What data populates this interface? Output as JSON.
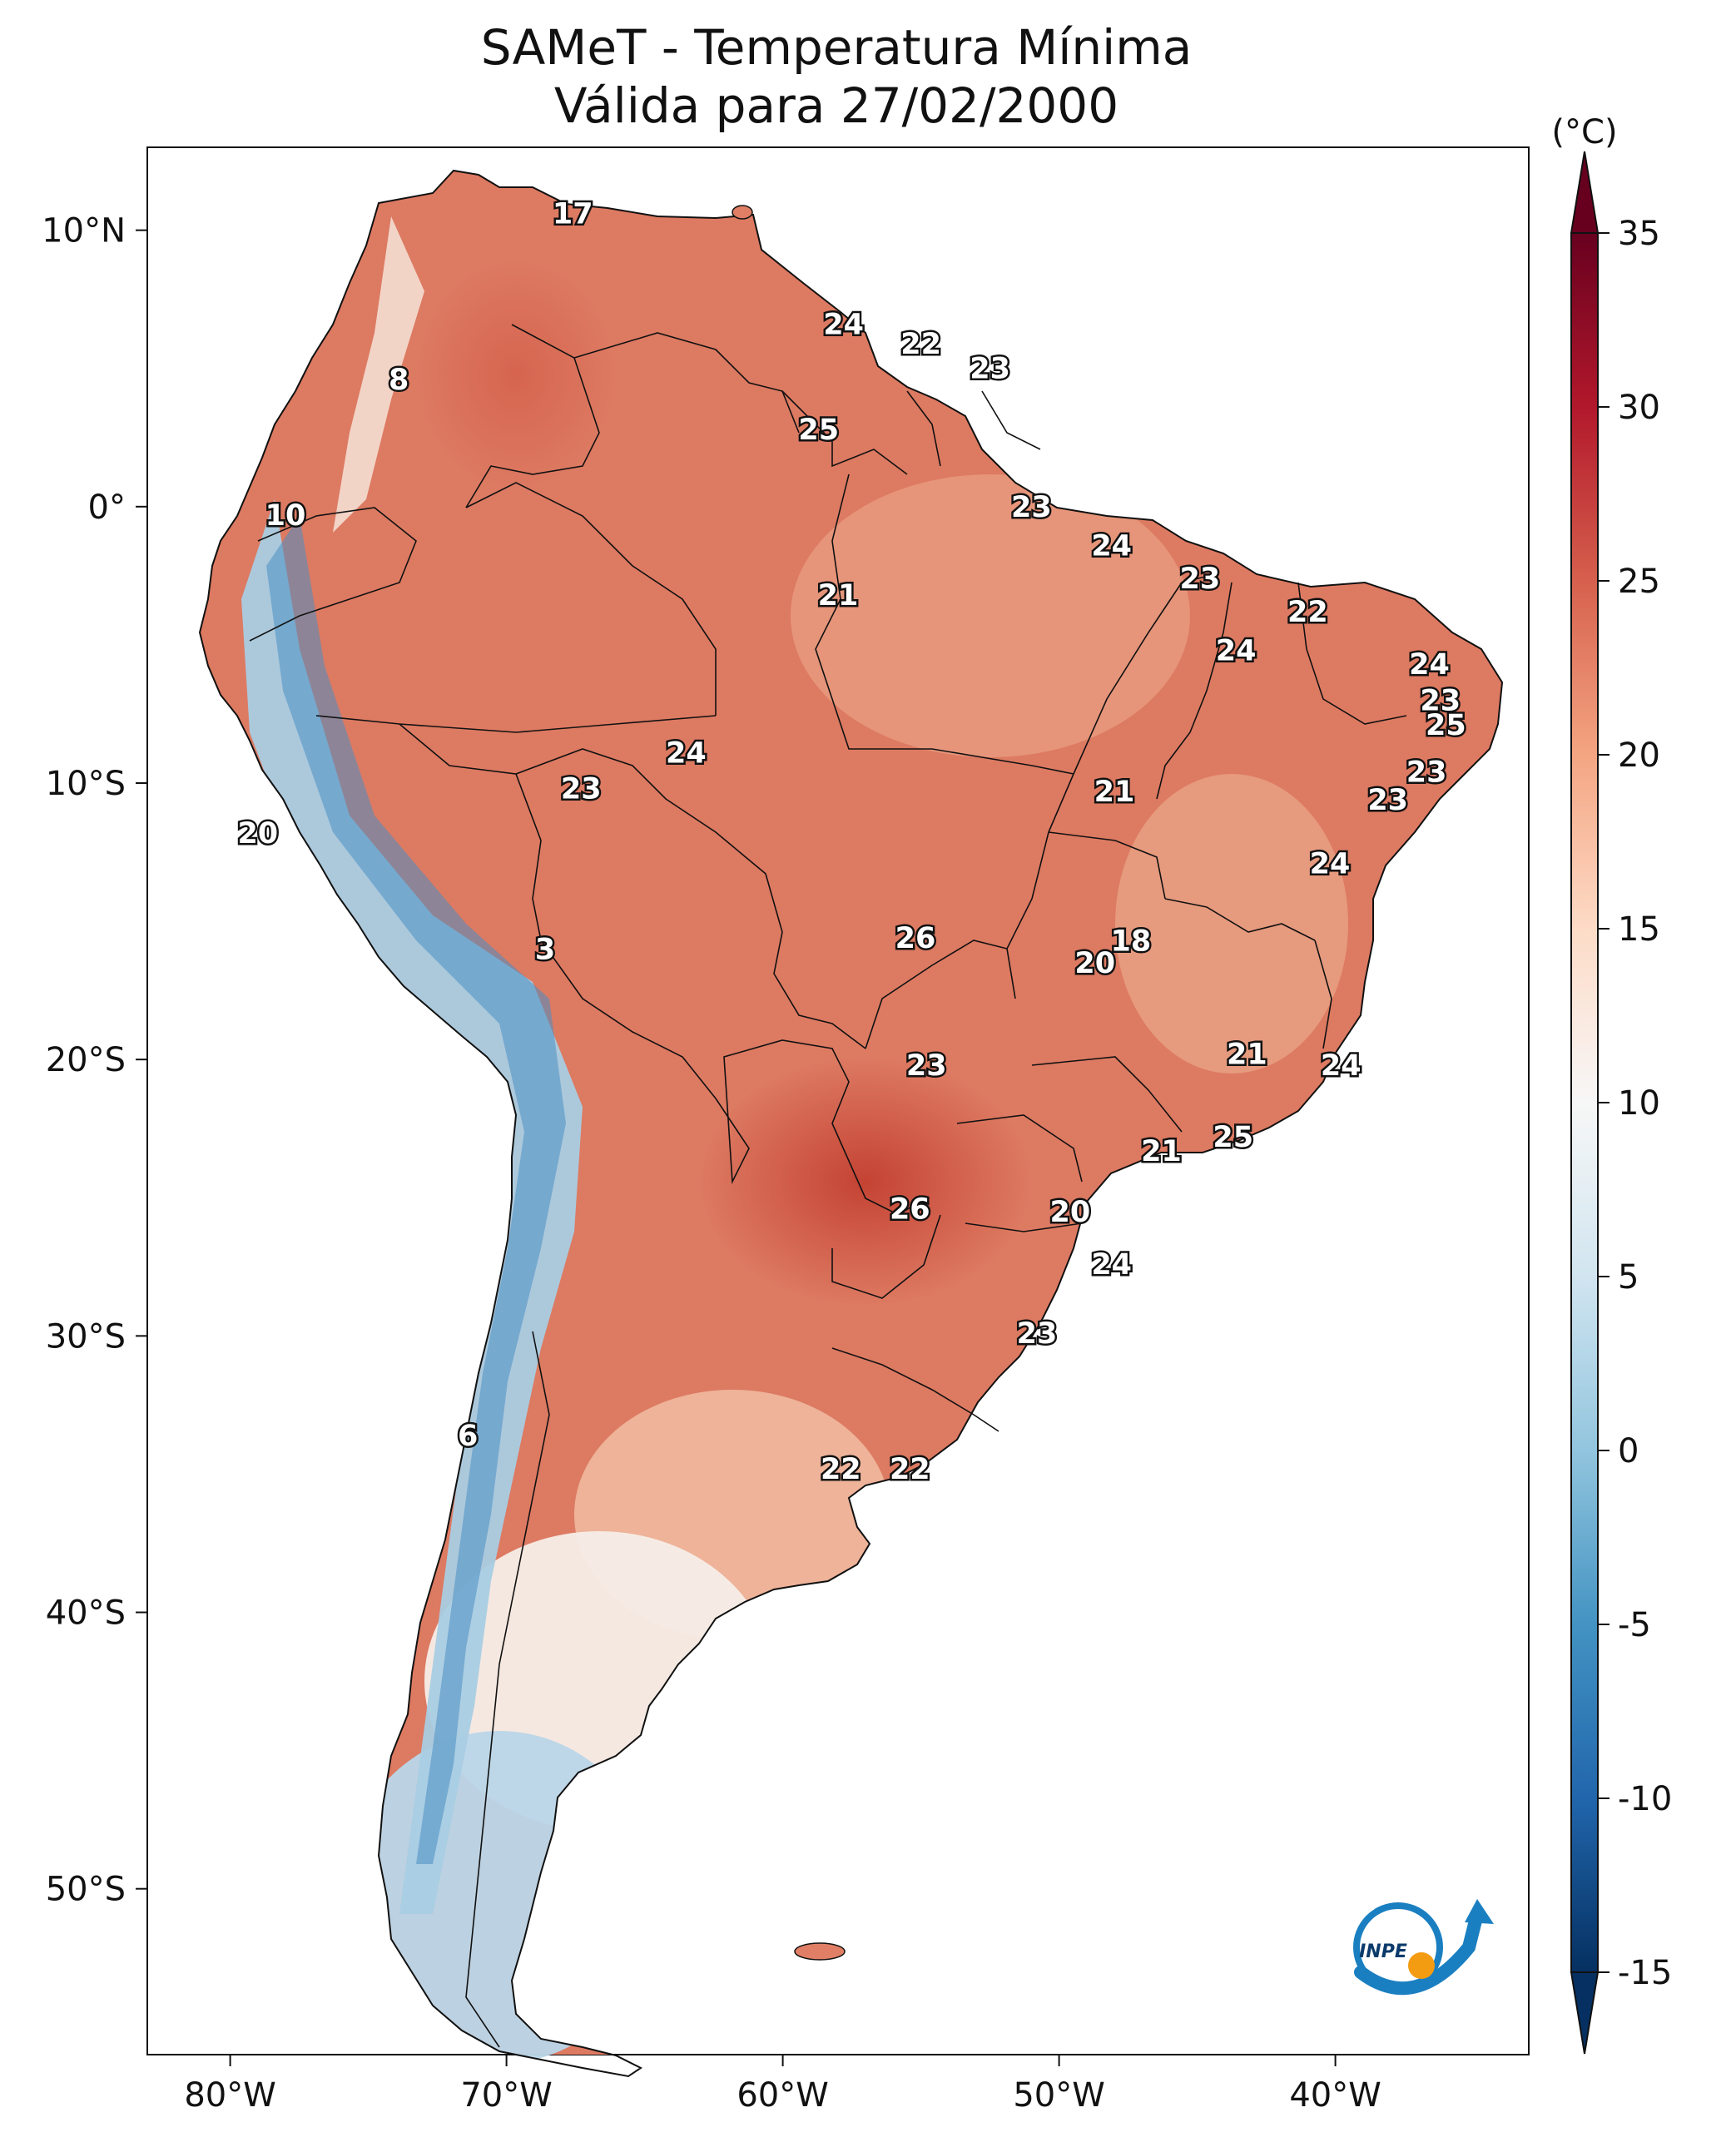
{
  "title": {
    "line1": "SAMeT - Temperatura Mínima",
    "line2": "Válida para 27/02/2000"
  },
  "map": {
    "extent": {
      "lon": [
        -83,
        -33
      ],
      "lat": [
        -56,
        13
      ]
    },
    "lat_ticks": [
      {
        "value": 10,
        "label": "10°N"
      },
      {
        "value": 0,
        "label": "0°"
      },
      {
        "value": -10,
        "label": "10°S"
      },
      {
        "value": -20,
        "label": "20°S"
      },
      {
        "value": -30,
        "label": "30°S"
      },
      {
        "value": -40,
        "label": "40°S"
      },
      {
        "value": -50,
        "label": "50°S"
      }
    ],
    "lon_ticks": [
      {
        "value": -80,
        "label": "80°W"
      },
      {
        "value": -70,
        "label": "70°W"
      },
      {
        "value": -60,
        "label": "60°W"
      },
      {
        "value": -50,
        "label": "50°W"
      },
      {
        "value": -40,
        "label": "40°W"
      }
    ],
    "value_labels": [
      {
        "lon": -67.6,
        "lat": 10.6,
        "text": "17"
      },
      {
        "lon": -73.9,
        "lat": 4.6,
        "text": "8"
      },
      {
        "lon": -78.0,
        "lat": -0.3,
        "text": "10"
      },
      {
        "lon": -57.8,
        "lat": 6.6,
        "text": "24"
      },
      {
        "lon": -55.0,
        "lat": 5.9,
        "text": "22"
      },
      {
        "lon": -52.5,
        "lat": 5.0,
        "text": "23"
      },
      {
        "lon": -58.7,
        "lat": 2.8,
        "text": "25"
      },
      {
        "lon": -51.0,
        "lat": 0.0,
        "text": "23"
      },
      {
        "lon": -48.1,
        "lat": -1.4,
        "text": "24"
      },
      {
        "lon": -44.9,
        "lat": -2.6,
        "text": "23"
      },
      {
        "lon": -41.0,
        "lat": -3.8,
        "text": "22"
      },
      {
        "lon": -58.0,
        "lat": -3.2,
        "text": "21"
      },
      {
        "lon": -43.6,
        "lat": -5.2,
        "text": "24"
      },
      {
        "lon": -36.6,
        "lat": -5.7,
        "text": "24"
      },
      {
        "lon": -36.2,
        "lat": -7.0,
        "text": "23"
      },
      {
        "lon": -36.0,
        "lat": -7.9,
        "text": "25"
      },
      {
        "lon": -36.7,
        "lat": -9.6,
        "text": "23"
      },
      {
        "lon": -38.1,
        "lat": -10.6,
        "text": "23"
      },
      {
        "lon": -63.5,
        "lat": -8.9,
        "text": "24"
      },
      {
        "lon": -67.3,
        "lat": -10.2,
        "text": "23"
      },
      {
        "lon": -48.0,
        "lat": -10.3,
        "text": "21"
      },
      {
        "lon": -79.0,
        "lat": -11.8,
        "text": "20"
      },
      {
        "lon": -40.2,
        "lat": -12.9,
        "text": "24"
      },
      {
        "lon": -68.6,
        "lat": -16.0,
        "text": "3"
      },
      {
        "lon": -55.2,
        "lat": -15.6,
        "text": "26"
      },
      {
        "lon": -47.4,
        "lat": -15.7,
        "text": "18"
      },
      {
        "lon": -48.7,
        "lat": -16.5,
        "text": "20"
      },
      {
        "lon": -54.8,
        "lat": -20.2,
        "text": "23"
      },
      {
        "lon": -43.2,
        "lat": -19.8,
        "text": "21"
      },
      {
        "lon": -39.8,
        "lat": -20.2,
        "text": "24"
      },
      {
        "lon": -46.3,
        "lat": -23.3,
        "text": "21"
      },
      {
        "lon": -43.7,
        "lat": -22.8,
        "text": "25"
      },
      {
        "lon": -55.4,
        "lat": -25.4,
        "text": "26"
      },
      {
        "lon": -49.6,
        "lat": -25.5,
        "text": "20"
      },
      {
        "lon": -48.1,
        "lat": -27.4,
        "text": "24"
      },
      {
        "lon": -50.8,
        "lat": -29.9,
        "text": "23"
      },
      {
        "lon": -71.4,
        "lat": -33.6,
        "text": "6"
      },
      {
        "lon": -57.9,
        "lat": -34.8,
        "text": "22"
      },
      {
        "lon": -55.4,
        "lat": -34.8,
        "text": "22"
      }
    ]
  },
  "colorbar": {
    "unit": "(°C)",
    "vmin": -15,
    "vmax": 35,
    "ticks": [
      "-15",
      "-10",
      "-5",
      "0",
      "5",
      "10",
      "15",
      "20",
      "25",
      "30",
      "35"
    ],
    "colors": [
      "#053061",
      "#2166ac",
      "#4393c3",
      "#92c5de",
      "#d1e5f0",
      "#f7f7f7",
      "#fddbc7",
      "#f4a582",
      "#d6604d",
      "#b2182b",
      "#67001f"
    ]
  },
  "logo": {
    "text": "INPE"
  }
}
